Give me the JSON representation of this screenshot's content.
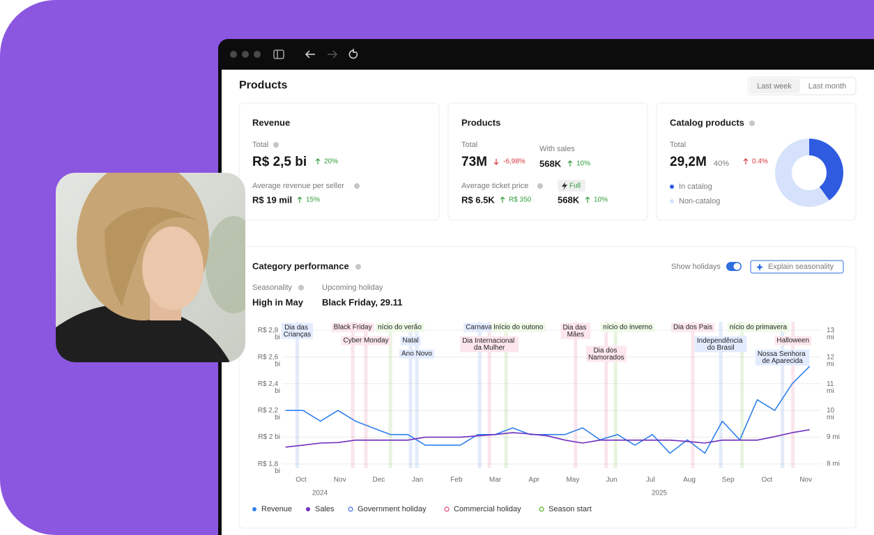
{
  "window": {
    "title": "Products",
    "ranges": [
      "Last week",
      "Last month"
    ]
  },
  "cards": {
    "revenue": {
      "title": "Revenue",
      "total_label": "Total",
      "total": "R$ 2,5 bi",
      "total_change": "20%",
      "avg_label": "Average revenue per seller",
      "avg": "R$ 19 mil",
      "avg_change": "15%"
    },
    "products": {
      "title": "Products",
      "total_label": "Total",
      "total": "73M",
      "total_change": "-6,98%",
      "with_sales_label": "With sales",
      "with_sales": "568K",
      "with_sales_change": "10%",
      "ticket_label": "Average ticket price",
      "badge": "Full",
      "ticket": "R$ 6.5K",
      "ticket_change": "R$ 350",
      "full_sales": "568K",
      "full_change": "10%"
    },
    "catalog": {
      "title": "Catalog products",
      "total_label": "Total",
      "total": "29,2M",
      "share": "40%",
      "change": "0.4%"
    }
  },
  "performance": {
    "title": "Category performance",
    "toggle": "Show holidays",
    "button": "Explain seasonality",
    "seasonality_label": "Seasonality",
    "seasonality": "High in May",
    "holiday_label": "Upcoming holiday",
    "holiday": "Black Friday, 29.11"
  },
  "chart_data": [
    {
      "type": "line",
      "x": [
        -0.4,
        0.05,
        0.5,
        0.95,
        1.4,
        1.85,
        2.3,
        2.75,
        3.2,
        3.65,
        4.1,
        4.55,
        5,
        5.45,
        5.9,
        6.35,
        6.8,
        7.25,
        7.7,
        8.15,
        8.6,
        9.05,
        9.5,
        9.95,
        10.4,
        10.85,
        11.3,
        11.75,
        12.2,
        12.65,
        13.1
      ],
      "xlim": [
        -0.5,
        13.2
      ],
      "xticks": [
        {
          "value": 0,
          "label": "Oct"
        },
        {
          "value": 1,
          "label": "Nov"
        },
        {
          "value": 2,
          "label": "Dec"
        },
        {
          "value": 3,
          "label": "Jan"
        },
        {
          "value": 4,
          "label": "Feb"
        },
        {
          "value": 5,
          "label": "Mar"
        },
        {
          "value": 6,
          "label": "Apr"
        },
        {
          "value": 7,
          "label": "May"
        },
        {
          "value": 8,
          "label": "Jun"
        },
        {
          "value": 9,
          "label": "Jul"
        },
        {
          "value": 10,
          "label": "Aug"
        },
        {
          "value": 11,
          "label": "Sep"
        },
        {
          "value": 12,
          "label": "Oct"
        },
        {
          "value": 13,
          "label": "Nov"
        }
      ],
      "year_labels": [
        "2024",
        "2025"
      ],
      "ylim": [
        1.8,
        2.8
      ],
      "yticks": [
        {
          "value": 1.8,
          "label": "R$ 1,8 bi"
        },
        {
          "value": 2.0,
          "label": "R$ 2 bi"
        },
        {
          "value": 2.2,
          "label": "R$ 2,2 bi"
        },
        {
          "value": 2.4,
          "label": "R$ 2,4 bi"
        },
        {
          "value": 2.6,
          "label": "R$ 2,6 bi"
        },
        {
          "value": 2.8,
          "label": "R$ 2,8 bi"
        }
      ],
      "y2lim": [
        8,
        13
      ],
      "y2ticks": [
        {
          "value": 8,
          "label": "8 mi"
        },
        {
          "value": 9,
          "label": "9 mi"
        },
        {
          "value": 10,
          "label": "10 mi"
        },
        {
          "value": 11,
          "label": "11 mi"
        },
        {
          "value": 12,
          "label": "12 mi"
        },
        {
          "value": 13,
          "label": "13 mi"
        }
      ],
      "grid": true,
      "series": [
        {
          "name": "Revenue",
          "color": "#2f80ed",
          "values": [
            2.2,
            2.2,
            2.12,
            2.2,
            2.12,
            2.07,
            2.02,
            2.02,
            1.94,
            1.94,
            1.94,
            2.02,
            2.02,
            2.07,
            2.02,
            2.02,
            2.02,
            2.07,
            1.98,
            2.02,
            1.94,
            2.02,
            1.88,
            1.98,
            1.88,
            2.12,
            1.98,
            2.28,
            2.2,
            2.4,
            2.53
          ]
        },
        {
          "name": "Sales",
          "color": "#6f2dbd",
          "axis": "y2",
          "values": [
            8.63,
            8.7,
            8.78,
            8.8,
            8.89,
            8.89,
            8.89,
            8.89,
            9.0,
            9.0,
            9.0,
            9.05,
            9.1,
            9.17,
            9.12,
            9.05,
            8.89,
            8.78,
            8.89,
            8.89,
            8.89,
            8.89,
            8.89,
            8.84,
            8.78,
            8.89,
            8.89,
            8.89,
            9.02,
            9.17,
            9.28
          ]
        }
      ],
      "holiday_types": [
        {
          "name": "Government holiday",
          "color": "#3b6fe0"
        },
        {
          "name": "Commercial holiday",
          "color": "#e0457b"
        },
        {
          "name": "Season start",
          "color": "#52b01e"
        }
      ],
      "holidays": [
        {
          "label": "Dia das Crianças",
          "x": -0.1,
          "type": 0
        },
        {
          "label": "Black Friday",
          "x": 1.33,
          "type": 1
        },
        {
          "label": "nício do verão",
          "x": 2.3,
          "type": 2
        },
        {
          "label": "Cyber Monday",
          "x": 1.67,
          "type": 1
        },
        {
          "label": "Natal",
          "x": 2.82,
          "type": 0
        },
        {
          "label": "Ano Novo",
          "x": 2.98,
          "type": 0
        },
        {
          "label": "Carnaval",
          "x": 4.6,
          "type": 0
        },
        {
          "label": "Início do outono",
          "x": 5.28,
          "type": 2
        },
        {
          "label": "Dia Internacional da Mulher",
          "x": 4.85,
          "type": 1
        },
        {
          "label": "Dia das Mães",
          "x": 7.07,
          "type": 1
        },
        {
          "label": "nício do inverno",
          "x": 8.1,
          "type": 2
        },
        {
          "label": "Dia dos Namorados",
          "x": 7.86,
          "type": 1
        },
        {
          "label": "Dia dos Pais",
          "x": 10.09,
          "type": 1
        },
        {
          "label": "nício do primavera",
          "x": 11.36,
          "type": 2
        },
        {
          "label": "Independência do Brasil",
          "x": 10.81,
          "type": 0
        },
        {
          "label": "Halloween",
          "x": 12.67,
          "type": 1
        },
        {
          "label": "Nossa Senhora de Aparecida",
          "x": 12.4,
          "type": 0
        }
      ]
    },
    {
      "type": "pie",
      "categories": [
        "In catalog",
        "Non-catalog"
      ],
      "values": [
        40,
        60
      ],
      "colors": [
        "#2f5be0",
        "#d6e2fb"
      ]
    }
  ]
}
